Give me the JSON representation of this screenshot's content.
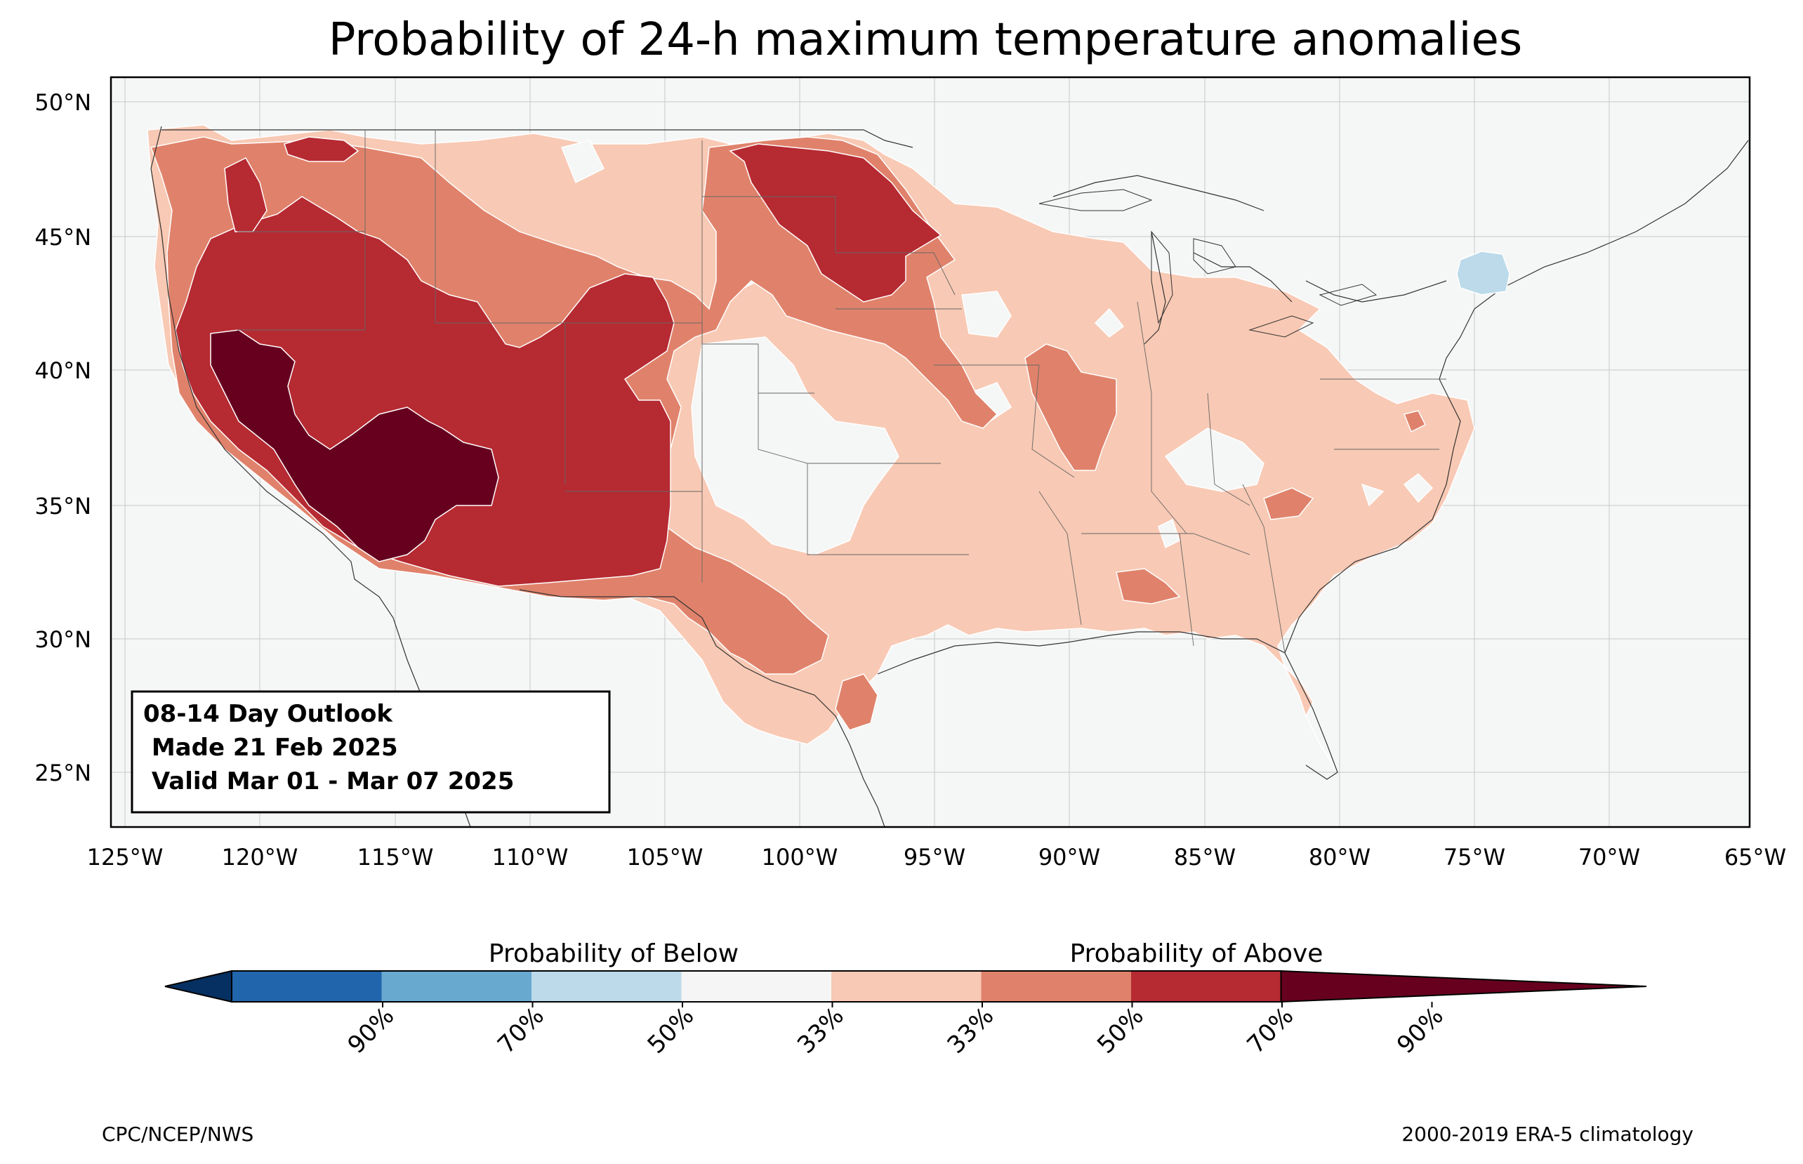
{
  "title": "Probability of 24-h maximum temperature anomalies",
  "lat_ticks": [
    "50°N",
    "45°N",
    "40°N",
    "35°N",
    "30°N",
    "25°N"
  ],
  "lon_ticks": [
    "125°W",
    "120°W",
    "115°W",
    "110°W",
    "105°W",
    "100°W",
    "95°W",
    "90°W",
    "85°W",
    "80°W",
    "75°W",
    "70°W",
    "65°W"
  ],
  "outlook_box": {
    "line1": "08-14 Day Outlook",
    "line2": " Made 21 Feb 2025",
    "line3": " Valid Mar 01 - Mar 07 2025"
  },
  "colorbar": {
    "below_label": "Probability of Below",
    "above_label": "Probability of Above",
    "tick_labels": [
      "90%",
      "70%",
      "50%",
      "33%",
      "33%",
      "50%",
      "70%",
      "90%"
    ],
    "colors": [
      "#053061",
      "#2166ac",
      "#67a9cf",
      "#bcdaea",
      "#f5f5f5",
      "#f8c9b4",
      "#e0826b",
      "#b62a32",
      "#67001f"
    ]
  },
  "footer_left": "CPC/NCEP/NWS",
  "footer_right": "2000-2019 ERA-5 climatology",
  "background_color": "#f5f6f6"
}
